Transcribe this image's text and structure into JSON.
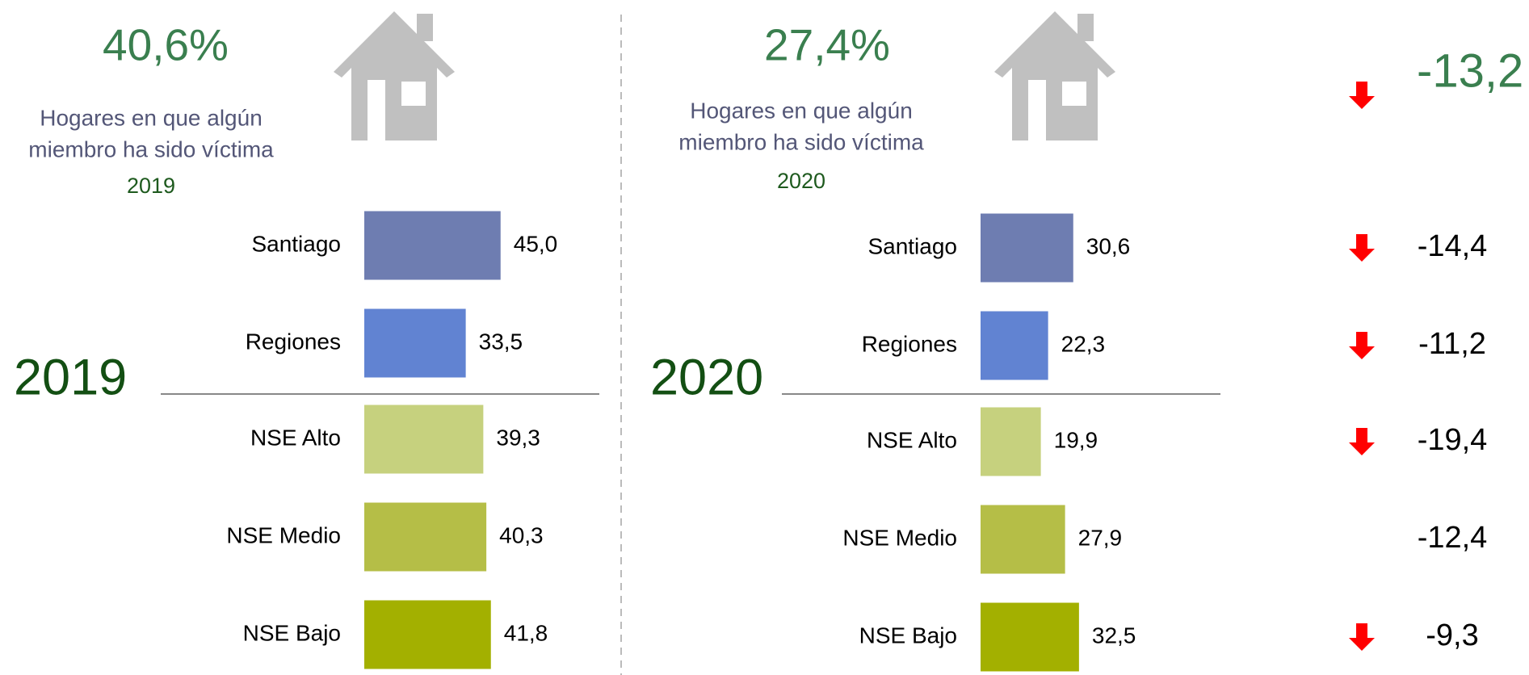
{
  "chart_data": [
    {
      "type": "bar",
      "orientation": "horizontal",
      "title": "2019",
      "headline": {
        "value": 40.6,
        "label": "40,6%"
      },
      "subtitle_lines": [
        "Hogares en que algún",
        "miembro ha sido víctima"
      ],
      "subtitle_year": "2019",
      "categories": [
        "Santiago",
        "Regiones",
        "NSE Alto",
        "NSE Medio",
        "NSE Bajo"
      ],
      "values": [
        45.0,
        33.5,
        39.3,
        40.3,
        41.8
      ],
      "value_labels": [
        "45,0",
        "33,5",
        "39,3",
        "40,3",
        "41,8"
      ],
      "colors": [
        "#6e7db1",
        "#6183d2",
        "#c6d17e",
        "#b5be47",
        "#a3b000"
      ]
    },
    {
      "type": "bar",
      "orientation": "horizontal",
      "title": "2020",
      "headline": {
        "value": 27.4,
        "label": "27,4%"
      },
      "subtitle_lines": [
        "Hogares en que algún",
        "miembro ha sido víctima"
      ],
      "subtitle_year": "2020",
      "categories": [
        "Santiago",
        "Regiones",
        "NSE Alto",
        "NSE Medio",
        "NSE Bajo"
      ],
      "values": [
        30.6,
        22.3,
        19.9,
        27.9,
        32.5
      ],
      "value_labels": [
        "30,6",
        "22,3",
        "19,9",
        "27,9",
        "32,5"
      ],
      "colors": [
        "#6e7db1",
        "#6183d2",
        "#c6d17e",
        "#b5be47",
        "#a3b000"
      ]
    }
  ],
  "changes": {
    "values": [
      -13.2,
      -14.4,
      -11.2,
      -19.4,
      -12.4,
      -9.3
    ],
    "value_labels": [
      "-13,2",
      "-14,4",
      "-11,2",
      "-19,4",
      "-12,4",
      "-9,3"
    ],
    "arrows": [
      true,
      true,
      true,
      true,
      false,
      true
    ],
    "arrow_color": "#ff0000"
  }
}
